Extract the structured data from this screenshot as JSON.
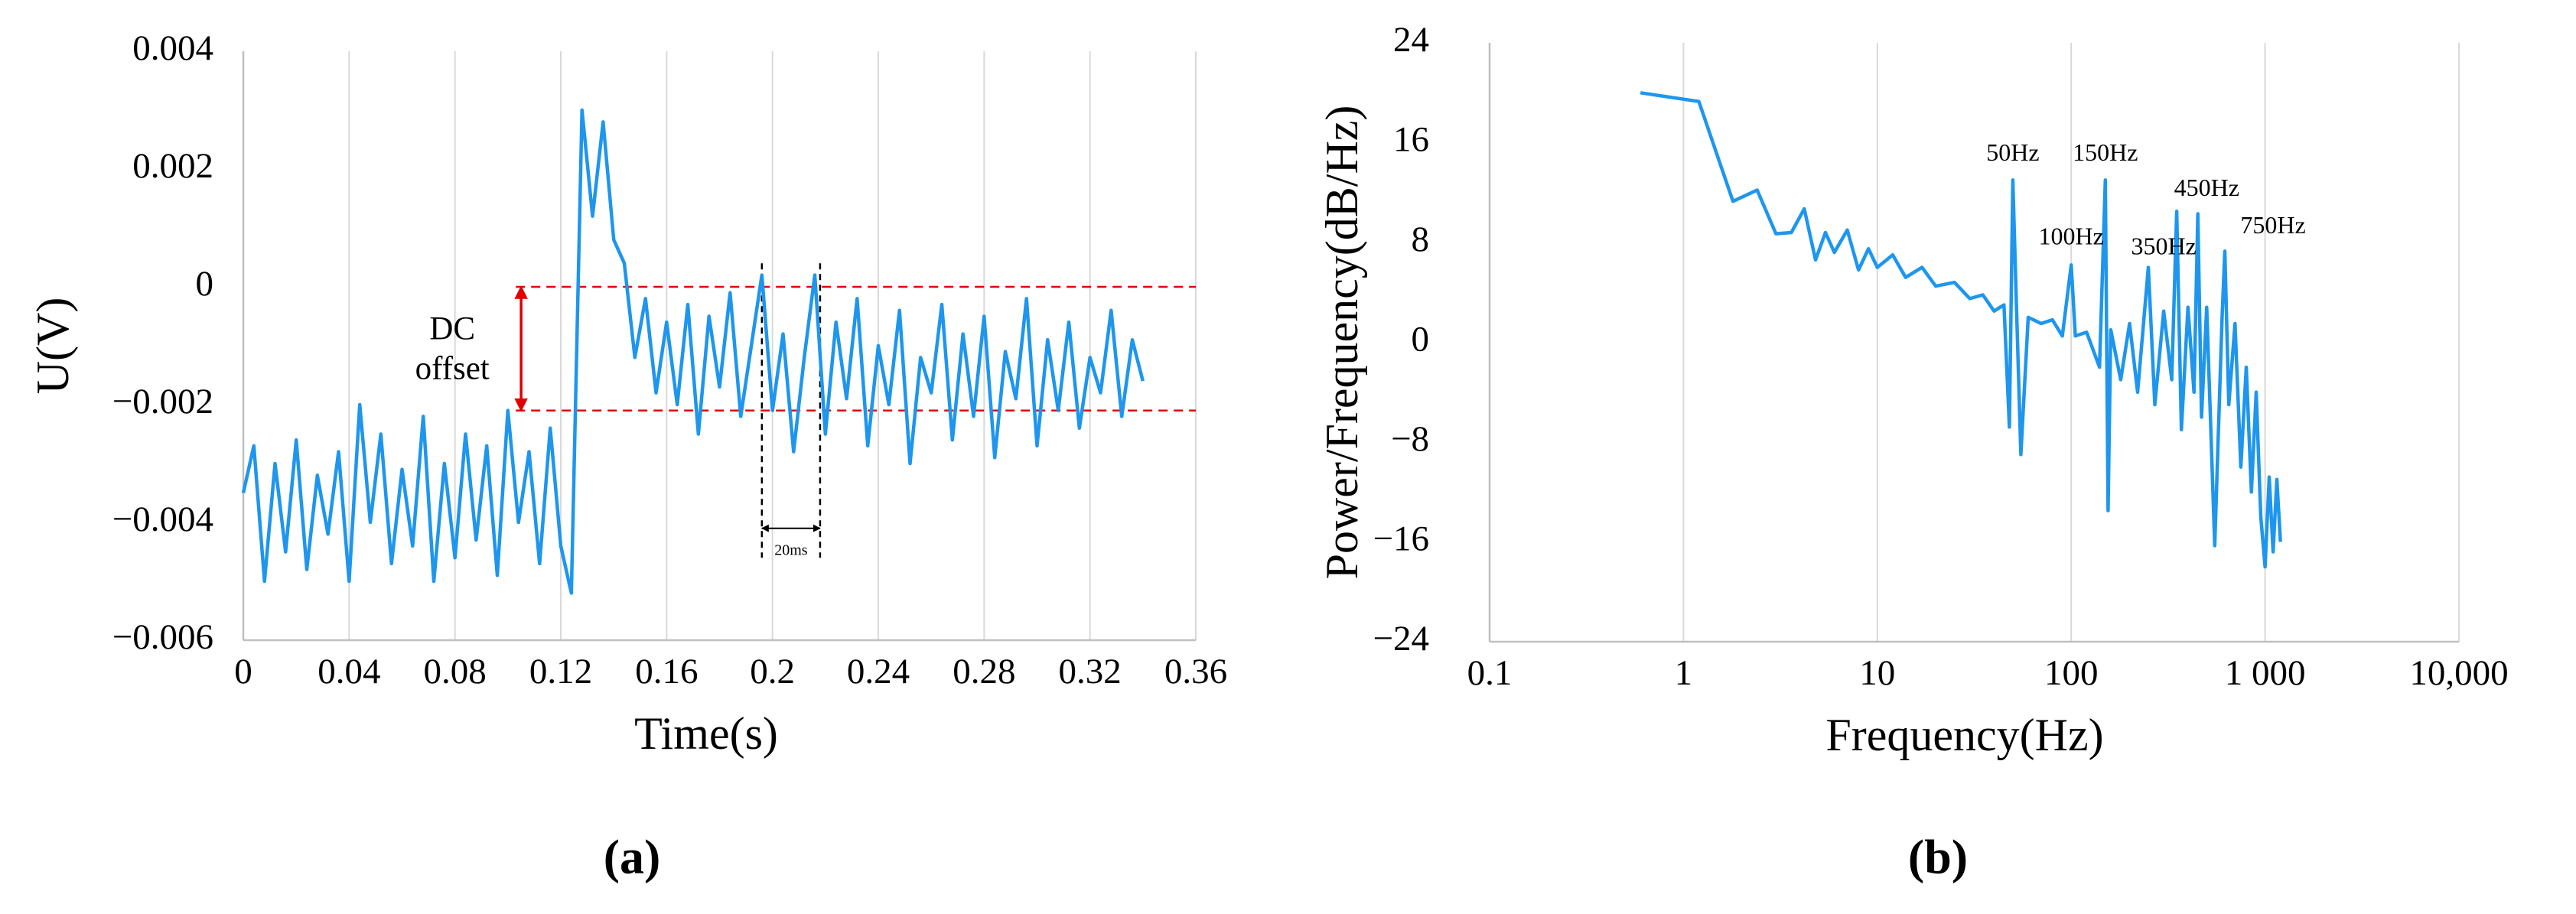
{
  "chart_data": [
    {
      "type": "line",
      "panel_label": "(a)",
      "xlabel": "Time(s)",
      "ylabel": "U(V)",
      "x": [
        0,
        0.004,
        0.008,
        0.012,
        0.016,
        0.02,
        0.024,
        0.028,
        0.032,
        0.036,
        0.04,
        0.044,
        0.048,
        0.052,
        0.056,
        0.06,
        0.064,
        0.068,
        0.072,
        0.076,
        0.08,
        0.084,
        0.088,
        0.092,
        0.096,
        0.1,
        0.104,
        0.108,
        0.112,
        0.116,
        0.12,
        0.124,
        0.128,
        0.132,
        0.136,
        0.14,
        0.144,
        0.148,
        0.152,
        0.156,
        0.16,
        0.164,
        0.168,
        0.172,
        0.176,
        0.18,
        0.184,
        0.188,
        0.192,
        0.196,
        0.2,
        0.204,
        0.208,
        0.212,
        0.216,
        0.22,
        0.224,
        0.228,
        0.232,
        0.236,
        0.24,
        0.244,
        0.248,
        0.252,
        0.256,
        0.26,
        0.264,
        0.268,
        0.272,
        0.276,
        0.28,
        0.284,
        0.288,
        0.292,
        0.296,
        0.3,
        0.304,
        0.308,
        0.312,
        0.316,
        0.32,
        0.324,
        0.328,
        0.332,
        0.336,
        0.34
      ],
      "series": [
        {
          "color": "#1e96ee",
          "values": [
            -0.0035,
            -0.0027,
            -0.005,
            -0.003,
            -0.0045,
            -0.0026,
            -0.0048,
            -0.0032,
            -0.0042,
            -0.0028,
            -0.005,
            -0.002,
            -0.004,
            -0.0025,
            -0.0047,
            -0.0031,
            -0.0044,
            -0.0022,
            -0.005,
            -0.003,
            -0.0046,
            -0.0025,
            -0.0043,
            -0.0027,
            -0.0049,
            -0.0021,
            -0.004,
            -0.0028,
            -0.0047,
            -0.0024,
            -0.0044,
            -0.0052,
            0.003,
            0.0012,
            0.0028,
            0.0008,
            0.0004,
            -0.0012,
            -0.0002,
            -0.0018,
            -0.0006,
            -0.002,
            -0.0003,
            -0.0025,
            -0.0005,
            -0.0017,
            -0.0001,
            -0.0022,
            -0.001,
            0.0002,
            -0.0021,
            -0.0008,
            -0.0028,
            -0.0012,
            0.0002,
            -0.0025,
            -0.0006,
            -0.0019,
            -0.0002,
            -0.0027,
            -0.001,
            -0.002,
            -0.0004,
            -0.003,
            -0.0012,
            -0.0018,
            -0.0003,
            -0.0026,
            -0.0008,
            -0.0022,
            -0.0005,
            -0.0029,
            -0.0011,
            -0.0019,
            -0.0002,
            -0.0027,
            -0.0009,
            -0.0021,
            -0.0006,
            -0.0024,
            -0.0012,
            -0.0018,
            -0.0004,
            -0.0022,
            -0.0009,
            -0.0016
          ]
        }
      ],
      "xlim": [
        0,
        0.36
      ],
      "ylim": [
        -0.006,
        0.004
      ],
      "xticks": [
        0,
        0.04,
        0.08,
        0.12,
        0.16,
        0.2,
        0.24,
        0.28,
        0.32,
        0.36
      ],
      "yticks": [
        {
          "value": -0.006,
          "label": "−0.006"
        },
        {
          "value": -0.004,
          "label": "−0.004"
        },
        {
          "value": -0.002,
          "label": "−0.002"
        },
        0,
        0.002,
        0.004
      ],
      "grid": "x",
      "annotations": {
        "dc_offset": {
          "text": [
            "DC",
            "offset"
          ],
          "x": 0.079,
          "y": -0.0011,
          "arrow_x": 0.105,
          "levels": [
            0,
            -0.0021
          ],
          "line_start": 0.103,
          "color": "#e00000"
        },
        "period": {
          "text": "20ms",
          "x": [
            0.196,
            0.218
          ],
          "y_top": 0.0004,
          "y_bottom": -0.0046,
          "arrow_y": -0.0041
        }
      }
    },
    {
      "type": "line",
      "panel_label": "(b)",
      "xlabel": "Frequency(Hz)",
      "ylabel": "Power/Frequency(dB/Hz)",
      "xscale": "log",
      "x": [
        0.6,
        1.2,
        1.8,
        2.4,
        3,
        3.6,
        4.2,
        4.8,
        5.4,
        6,
        7,
        8,
        9,
        10,
        12,
        14,
        17,
        20,
        25,
        30,
        35,
        40,
        45,
        48,
        50,
        52,
        55,
        60,
        70,
        80,
        90,
        100,
        105,
        120,
        140,
        150,
        155,
        160,
        180,
        200,
        220,
        250,
        270,
        300,
        330,
        350,
        370,
        400,
        430,
        450,
        470,
        500,
        550,
        600,
        620,
        650,
        700,
        750,
        800,
        850,
        900,
        950,
        1000,
        1050,
        1100,
        1150,
        1200
      ],
      "series": [
        {
          "color": "#1e96ee",
          "values": [
            20,
            19.3,
            11.3,
            12.2,
            8.7,
            8.8,
            10.7,
            6.6,
            8.8,
            7.2,
            9,
            5.8,
            7.5,
            6,
            7,
            5.2,
            6,
            4.5,
            4.8,
            3.5,
            3.8,
            2.5,
            3,
            -6.8,
            13,
            3.8,
            -9,
            2,
            1.5,
            1.8,
            0.5,
            6.2,
            0.5,
            0.8,
            -2,
            13,
            -13.5,
            1,
            -3,
            1.5,
            -4,
            6,
            -5,
            2.5,
            -3,
            10.5,
            -7,
            2.8,
            -4,
            10.3,
            -6,
            2.8,
            -16.3,
            2,
            7.3,
            -5,
            1.5,
            -10,
            -2,
            -12,
            -4,
            -14,
            -18,
            -10.8,
            -16.8,
            -11,
            -16
          ]
        }
      ],
      "xlim": [
        0.1,
        10000
      ],
      "ylim": [
        -24,
        24
      ],
      "xticks": [
        0.1,
        1,
        10,
        100,
        {
          "value": 1000,
          "label": "1 000"
        },
        {
          "value": 10000,
          "label": "10,000"
        }
      ],
      "yticks": [
        {
          "value": -24,
          "label": "−24"
        },
        {
          "value": -16,
          "label": "−16"
        },
        {
          "value": -8,
          "label": "−8"
        },
        0,
        8,
        16,
        24
      ],
      "grid": "x",
      "annotations": {
        "peaks": [
          {
            "text": "50Hz",
            "x": 50,
            "y": 15
          },
          {
            "text": "100Hz",
            "x": 100,
            "y": 8.3
          },
          {
            "text": "150Hz",
            "x": 150,
            "y": 15
          },
          {
            "text": "350Hz",
            "x": 300,
            "y": 7.5
          },
          {
            "text": "450Hz",
            "x": 500,
            "y": 12.2
          },
          {
            "text": "750Hz",
            "x": 1100,
            "y": 9.2
          }
        ]
      }
    }
  ]
}
